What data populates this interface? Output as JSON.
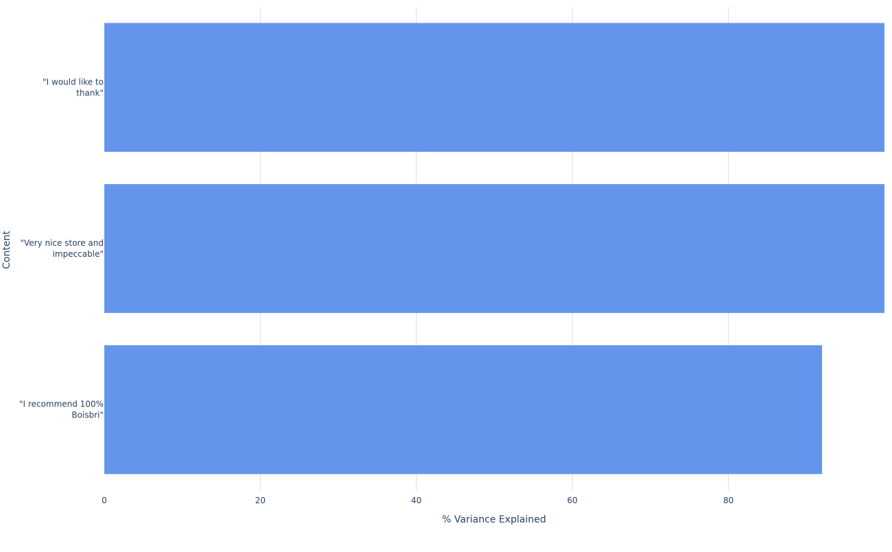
{
  "chart_data": {
    "type": "bar",
    "orientation": "horizontal",
    "title": "",
    "xlabel": "% Variance Explained",
    "ylabel": "Content",
    "xlim": [
      0,
      100
    ],
    "xticks": [
      0,
      20,
      40,
      60,
      80
    ],
    "grid": "vertical",
    "categories": [
      [
        "\"I would like to",
        "thank\""
      ],
      [
        "\"Very nice store and",
        "impeccable\""
      ],
      [
        "\"I recommend 100%",
        "Boisbri\""
      ]
    ],
    "values": [
      100,
      100,
      92
    ],
    "colors": {
      "bar": "#6495ED",
      "grid": "#dcdcdc",
      "text": "#2a3f5f"
    }
  }
}
